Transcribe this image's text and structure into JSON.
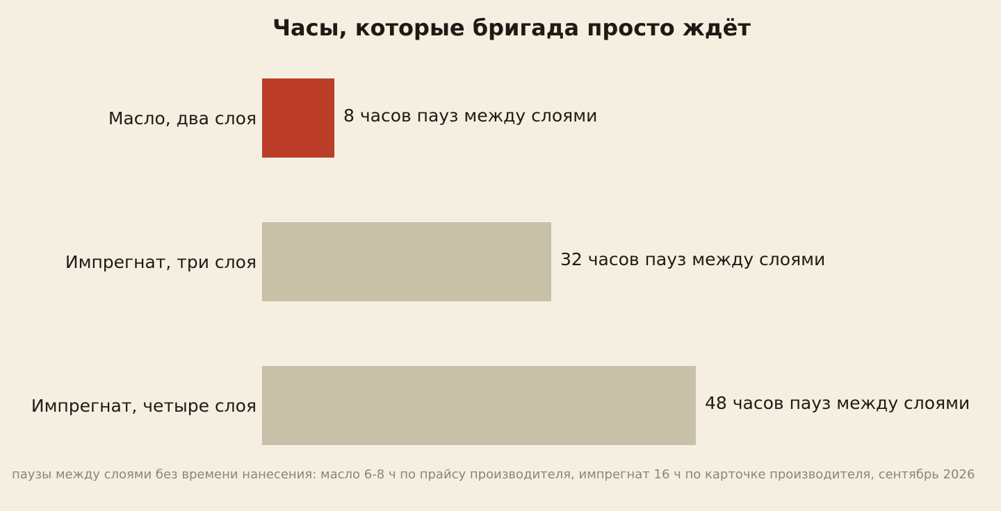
{
  "chart_data": {
    "type": "bar",
    "orientation": "horizontal",
    "title": "Часы, которые бригада просто ждёт",
    "categories": [
      "Масло, два слоя",
      "Импрегнат, три слоя",
      "Импрегнат, четыре слоя"
    ],
    "values": [
      8,
      32,
      48
    ],
    "value_labels": [
      "8 часов пауз между слоями",
      "32 часов пауз между слоями",
      "48 часов пауз между слоями"
    ],
    "bar_colors": [
      "#bc3d28",
      "#c9c0a8",
      "#c9c0a8"
    ],
    "xlim": [
      0,
      48
    ],
    "grid": false,
    "legend": "none",
    "note": "паузы между слоями без времени нанесения: масло 6-8 ч по прайсу производителя, импрегнат 16 ч по карточке производителя, сентябрь 2026"
  }
}
